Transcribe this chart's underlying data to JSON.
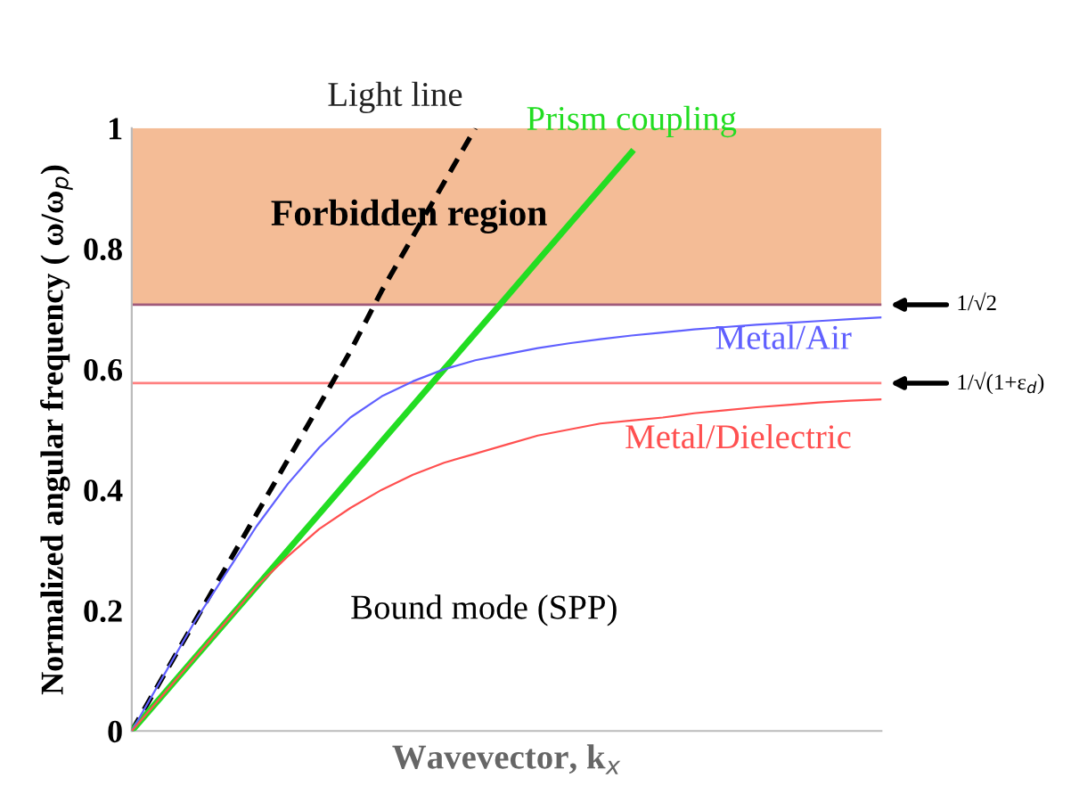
{
  "chart_data": {
    "type": "line",
    "xlabel": "Wavevector, k$_{x}$",
    "ylabel": "Normalized angular frequency ( ω/ω$_{p}$)",
    "categories": [
      null,
      null,
      null,
      null,
      null,
      null,
      null,
      null,
      null,
      null,
      null,
      null,
      null,
      null,
      null,
      null,
      null,
      null,
      null,
      null,
      null,
      null,
      null,
      null,
      null
    ],
    "ylim": [
      0,
      1
    ],
    "yticks": [
      0,
      0.2,
      0.4,
      0.6,
      0.8,
      1
    ],
    "grid": false,
    "legend": false,
    "marker": "none",
    "series": [
      {
        "name": "Light line",
        "color": "#000000",
        "line_style": "dashed",
        "values": [
          0,
          0.09,
          0.18,
          0.27,
          0.36,
          0.45,
          0.54,
          0.63,
          0.73,
          0.82,
          0.91,
          1.0,
          null,
          null,
          null,
          null,
          null,
          null,
          null,
          null,
          null,
          null,
          null,
          null,
          null
        ]
      },
      {
        "name": "Prism coupling",
        "color": "#22dd22",
        "line_style": "solid",
        "values": [
          0,
          0.06,
          0.12,
          0.18,
          0.24,
          0.3,
          0.36,
          0.42,
          0.48,
          0.54,
          0.6,
          0.66,
          0.72,
          0.78,
          0.84,
          0.9,
          0.96,
          null,
          null,
          null,
          null,
          null,
          null,
          null,
          null
        ]
      },
      {
        "name": "Metal/Air",
        "color": "#6060ff",
        "line_style": "solid",
        "values": [
          0,
          0.09,
          0.18,
          0.26,
          0.34,
          0.41,
          0.47,
          0.52,
          0.555,
          0.58,
          0.6,
          0.615,
          0.625,
          0.635,
          0.643,
          0.65,
          0.656,
          0.661,
          0.666,
          0.67,
          0.674,
          0.677,
          0.68,
          0.683,
          0.686
        ]
      },
      {
        "name": "Metal/Dielectric",
        "color": "#ff5050",
        "line_style": "solid",
        "values": [
          0,
          0.06,
          0.12,
          0.18,
          0.24,
          0.29,
          0.335,
          0.37,
          0.4,
          0.425,
          0.445,
          0.46,
          0.475,
          0.49,
          0.5,
          0.51,
          0.515,
          0.52,
          0.527,
          0.532,
          0.537,
          0.541,
          0.545,
          0.548,
          0.55
        ]
      }
    ],
    "ref_lines": [
      {
        "axis": "y",
        "value": 0.707,
        "label": "1/√2",
        "color": "#a05a7a",
        "line_style": "solid"
      },
      {
        "axis": "y",
        "value": 0.577,
        "label": "1/√(1+ε$_{d}$)",
        "color": "#ff8080",
        "line_style": "solid"
      }
    ],
    "bands": [
      {
        "axis": "y",
        "from": 0.707,
        "to": 1,
        "label": "Forbidden region",
        "color": "#f4bc96"
      }
    ],
    "annotations": [
      "Bound mode (SPP)"
    ]
  }
}
